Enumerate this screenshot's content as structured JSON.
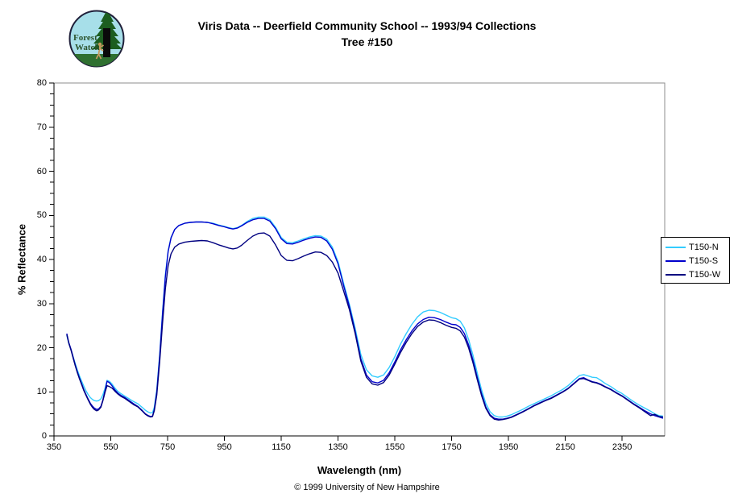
{
  "header": {
    "title_line1": "Viris Data -- Deerfield Community School -- 1993/94 Collections",
    "title_line2": "Tree #150"
  },
  "logo": {
    "line1": "Forest",
    "line2": "Watch"
  },
  "footer": {
    "copyright": "© 1999 University of New Hampshire"
  },
  "colors": {
    "series_n": "#33CCFF",
    "series_s": "#0000CC",
    "series_w": "#000080",
    "plot_border": "#8c8c8c",
    "axis": "#000000"
  },
  "chart_data": {
    "type": "line",
    "title": "Viris Data -- Deerfield Community School -- 1993/94 Collections Tree #150",
    "xlabel": "Wavelength (nm)",
    "ylabel": "% Reflectance",
    "xlim": [
      350,
      2500
    ],
    "ylim": [
      0,
      80
    ],
    "x_ticks": [
      350,
      550,
      750,
      950,
      1150,
      1350,
      1550,
      1750,
      1950,
      2150,
      2350
    ],
    "y_ticks": [
      0,
      10,
      20,
      30,
      40,
      50,
      60,
      70,
      80
    ],
    "y_minor_tick_step": 2.5,
    "grid": false,
    "legend_position": "right",
    "x": [
      395,
      402,
      410,
      418,
      425,
      432,
      440,
      448,
      455,
      462,
      470,
      478,
      485,
      492,
      500,
      507,
      515,
      522,
      530,
      537,
      545,
      555,
      565,
      575,
      585,
      600,
      615,
      630,
      645,
      660,
      672,
      682,
      690,
      697,
      703,
      712,
      722,
      732,
      742,
      752,
      762,
      775,
      790,
      810,
      830,
      850,
      870,
      890,
      910,
      930,
      950,
      965,
      980,
      995,
      1010,
      1030,
      1050,
      1070,
      1090,
      1110,
      1130,
      1150,
      1170,
      1190,
      1210,
      1230,
      1250,
      1270,
      1290,
      1310,
      1330,
      1350,
      1370,
      1390,
      1410,
      1430,
      1450,
      1470,
      1490,
      1510,
      1530,
      1550,
      1570,
      1590,
      1610,
      1630,
      1650,
      1670,
      1690,
      1710,
      1730,
      1750,
      1765,
      1780,
      1795,
      1810,
      1825,
      1840,
      1855,
      1870,
      1885,
      1900,
      1915,
      1930,
      1945,
      1960,
      1980,
      2000,
      2020,
      2040,
      2060,
      2080,
      2100,
      2120,
      2140,
      2160,
      2180,
      2200,
      2215,
      2230,
      2245,
      2260,
      2275,
      2290,
      2310,
      2330,
      2350,
      2370,
      2390,
      2410,
      2430,
      2450,
      2465,
      2480,
      2494
    ],
    "series": [
      {
        "name": "T150-N",
        "color": "#33CCFF",
        "values": [
          22.8,
          21.0,
          19.5,
          17.8,
          16.4,
          15.0,
          13.6,
          12.3,
          11.3,
          10.3,
          9.4,
          8.7,
          8.3,
          8.0,
          7.9,
          8.0,
          8.4,
          9.3,
          10.9,
          12.6,
          12.4,
          11.7,
          10.8,
          10.1,
          9.6,
          9.0,
          8.4,
          7.8,
          7.3,
          6.5,
          5.8,
          5.4,
          5.2,
          5.3,
          6.5,
          10.5,
          18.5,
          28.0,
          36.5,
          42.0,
          45.0,
          46.8,
          47.7,
          48.2,
          48.4,
          48.5,
          48.5,
          48.4,
          48.2,
          47.8,
          47.5,
          47.2,
          47.0,
          47.2,
          47.7,
          48.6,
          49.3,
          49.6,
          49.6,
          49.0,
          47.3,
          45.0,
          43.9,
          43.8,
          44.2,
          44.7,
          45.1,
          45.4,
          45.3,
          44.6,
          42.8,
          39.5,
          34.5,
          29.8,
          24.5,
          18.5,
          15.0,
          13.6,
          13.3,
          13.8,
          15.5,
          18.0,
          20.8,
          23.2,
          25.3,
          27.0,
          28.1,
          28.5,
          28.4,
          28.0,
          27.4,
          26.8,
          26.6,
          26.0,
          24.5,
          21.8,
          18.3,
          14.3,
          10.5,
          7.4,
          5.5,
          4.6,
          4.3,
          4.3,
          4.5,
          4.8,
          5.4,
          6.0,
          6.7,
          7.3,
          7.9,
          8.5,
          9.1,
          9.8,
          10.5,
          11.4,
          12.6,
          13.7,
          13.9,
          13.6,
          13.3,
          13.2,
          12.6,
          11.9,
          11.2,
          10.3,
          9.6,
          8.7,
          7.8,
          7.0,
          6.3,
          5.6,
          5.0,
          4.6,
          4.5
        ]
      },
      {
        "name": "T150-S",
        "color": "#0000CC",
        "values": [
          23.2,
          21.2,
          19.6,
          17.7,
          16.1,
          14.6,
          13.1,
          11.7,
          10.5,
          9.5,
          8.4,
          7.4,
          6.8,
          6.3,
          6.0,
          6.1,
          6.7,
          8.1,
          10.4,
          12.4,
          12.1,
          11.3,
          10.4,
          9.7,
          9.2,
          8.7,
          8.0,
          7.3,
          6.7,
          5.8,
          5.0,
          4.6,
          4.4,
          4.5,
          6.0,
          10.0,
          18.0,
          27.5,
          36.0,
          41.8,
          44.9,
          46.8,
          47.7,
          48.2,
          48.4,
          48.5,
          48.5,
          48.4,
          48.1,
          47.7,
          47.4,
          47.1,
          46.9,
          47.1,
          47.6,
          48.4,
          49.0,
          49.3,
          49.3,
          48.7,
          47.0,
          44.7,
          43.6,
          43.5,
          43.9,
          44.4,
          44.8,
          45.1,
          45.0,
          44.2,
          42.3,
          39.0,
          34.0,
          29.3,
          23.8,
          17.5,
          13.8,
          12.3,
          12.0,
          12.6,
          14.3,
          16.8,
          19.5,
          21.8,
          23.8,
          25.4,
          26.4,
          26.9,
          26.8,
          26.4,
          25.8,
          25.3,
          25.2,
          24.6,
          23.2,
          20.6,
          17.2,
          13.3,
          9.6,
          6.6,
          4.8,
          4.0,
          3.8,
          3.8,
          4.0,
          4.3,
          4.9,
          5.5,
          6.2,
          6.9,
          7.5,
          8.1,
          8.6,
          9.3,
          10.0,
          10.8,
          11.9,
          13.0,
          13.2,
          12.7,
          12.3,
          12.1,
          11.7,
          11.2,
          10.6,
          9.8,
          9.1,
          8.2,
          7.3,
          6.5,
          5.7,
          5.0,
          4.6,
          4.3,
          4.0
        ]
      },
      {
        "name": "T150-W",
        "color": "#000080",
        "values": [
          23.0,
          21.1,
          19.4,
          17.5,
          15.9,
          14.4,
          12.9,
          11.5,
          10.3,
          9.3,
          8.2,
          7.2,
          6.5,
          6.0,
          5.7,
          5.9,
          6.5,
          7.9,
          10.0,
          11.4,
          11.2,
          10.8,
          10.1,
          9.5,
          9.0,
          8.5,
          7.8,
          7.1,
          6.6,
          5.7,
          4.9,
          4.5,
          4.3,
          4.4,
          5.7,
          9.3,
          16.8,
          25.5,
          33.3,
          38.6,
          41.3,
          42.8,
          43.5,
          43.9,
          44.1,
          44.2,
          44.3,
          44.2,
          43.8,
          43.3,
          42.9,
          42.6,
          42.4,
          42.6,
          43.2,
          44.3,
          45.3,
          45.9,
          46.0,
          45.3,
          43.3,
          40.9,
          39.8,
          39.7,
          40.2,
          40.8,
          41.3,
          41.7,
          41.6,
          40.9,
          39.4,
          36.9,
          32.8,
          28.6,
          23.3,
          17.0,
          13.3,
          11.8,
          11.5,
          12.1,
          13.8,
          16.3,
          18.9,
          21.2,
          23.2,
          24.8,
          25.8,
          26.3,
          26.2,
          25.7,
          25.1,
          24.6,
          24.4,
          23.8,
          22.4,
          19.9,
          16.6,
          12.8,
          9.2,
          6.3,
          4.6,
          3.8,
          3.6,
          3.7,
          3.9,
          4.2,
          4.8,
          5.4,
          6.1,
          6.8,
          7.4,
          8.0,
          8.5,
          9.2,
          9.9,
          10.7,
          11.8,
          12.9,
          13.0,
          12.6,
          12.2,
          12.0,
          11.6,
          11.1,
          10.5,
          9.7,
          9.0,
          8.1,
          7.2,
          6.4,
          5.5,
          4.6,
          4.9,
          4.4,
          4.3
        ]
      }
    ]
  }
}
